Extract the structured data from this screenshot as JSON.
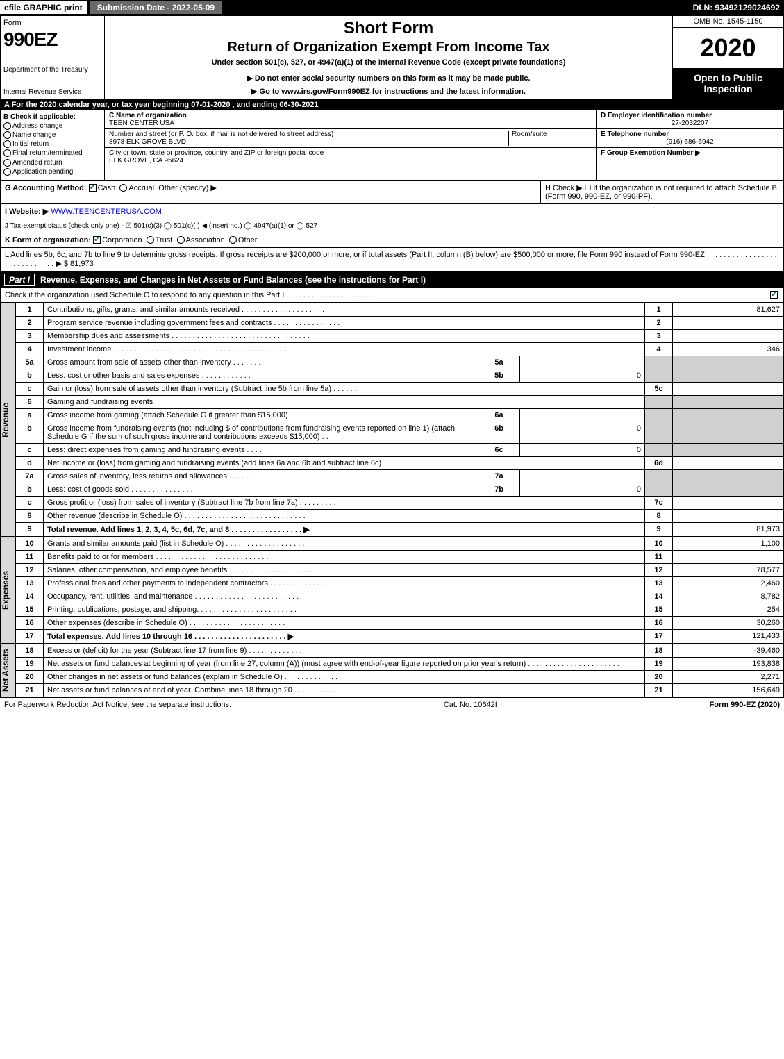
{
  "topbar": {
    "efile": "efile GRAPHIC print",
    "submission": "Submission Date - 2022-05-09",
    "dln": "DLN: 93492129024692"
  },
  "header": {
    "form_word": "Form",
    "form_num": "990EZ",
    "dept": "Department of the Treasury",
    "irs": "Internal Revenue Service",
    "short": "Short Form",
    "title": "Return of Organization Exempt From Income Tax",
    "subtitle": "Under section 501(c), 527, or 4947(a)(1) of the Internal Revenue Code (except private foundations)",
    "note1": "▶ Do not enter social security numbers on this form as it may be made public.",
    "note2": "▶ Go to www.irs.gov/Form990EZ for instructions and the latest information.",
    "omb": "OMB No. 1545-1150",
    "year": "2020",
    "inspect": "Open to Public Inspection"
  },
  "row_a": {
    "prefix": "A For the 2020 calendar year, or tax year beginning ",
    "begin": "07-01-2020",
    "mid": " , and ending ",
    "end": "06-30-2021"
  },
  "col_b": {
    "label": "B Check if applicable:",
    "items": [
      "Address change",
      "Name change",
      "Initial return",
      "Final return/terminated",
      "Amended return",
      "Application pending"
    ]
  },
  "col_c": {
    "name_label": "C Name of organization",
    "name": "TEEN CENTER USA",
    "addr_label": "Number and street (or P. O. box, if mail is not delivered to street address)",
    "room_label": "Room/suite",
    "addr": "8978 ELK GROVE BLVD",
    "city_label": "City or town, state or province, country, and ZIP or foreign postal code",
    "city": "ELK GROVE, CA  95624"
  },
  "col_d": {
    "ein_label": "D Employer identification number",
    "ein": "27-2032207",
    "tel_label": "E Telephone number",
    "tel": "(916) 686-6942",
    "grp_label": "F Group Exemption Number  ▶",
    "grp": ""
  },
  "g": {
    "label": "G Accounting Method:",
    "cash": "Cash",
    "accrual": "Accrual",
    "other": "Other (specify) ▶"
  },
  "h": {
    "text": "H Check ▶ ☐ if the organization is not required to attach Schedule B (Form 990, 990-EZ, or 990-PF)."
  },
  "i": {
    "label": "I Website: ▶",
    "value": "WWW.TEENCENTERUSA.COM"
  },
  "j": {
    "text": "J Tax-exempt status (check only one) - ☑ 501(c)(3)  ◯ 501(c)(  ) ◀ (insert no.)  ◯ 4947(a)(1) or  ◯ 527"
  },
  "k": {
    "label": "K Form of organization:",
    "corp": "Corporation",
    "trust": "Trust",
    "assoc": "Association",
    "other": "Other"
  },
  "l": {
    "text": "L Add lines 5b, 6c, and 7b to line 9 to determine gross receipts. If gross receipts are $200,000 or more, or if total assets (Part II, column (B) below) are $500,000 or more, file Form 990 instead of Form 990-EZ . . . . . . . . . . . . . . . . . . . . . . . . . . . . . ▶ $ 81,973"
  },
  "part1": {
    "num": "Part I",
    "title": "Revenue, Expenses, and Changes in Net Assets or Fund Balances (see the instructions for Part I)",
    "check": "Check if the organization used Schedule O to respond to any question in this Part I . . . . . . . . . . . . . . . . . . . . ."
  },
  "vtabs": {
    "rev": "Revenue",
    "exp": "Expenses",
    "net": "Net Assets"
  },
  "lines": {
    "1": {
      "d": "Contributions, gifts, grants, and similar amounts received . . . . . . . . . . . . . . . . . . . .",
      "n": "1",
      "v": "81,627"
    },
    "2": {
      "d": "Program service revenue including government fees and contracts . . . . . . . . . . . . . . . .",
      "n": "2",
      "v": ""
    },
    "3": {
      "d": "Membership dues and assessments . . . . . . . . . . . . . . . . . . . . . . . . . . . . . . . . .",
      "n": "3",
      "v": ""
    },
    "4": {
      "d": "Investment income . . . . . . . . . . . . . . . . . . . . . . . . . . . . . . . . . . . . . . . . .",
      "n": "4",
      "v": "346"
    },
    "5a": {
      "d": "Gross amount from sale of assets other than inventory . . . . . . .",
      "s": "5a",
      "sv": ""
    },
    "5b": {
      "d": "Less: cost or other basis and sales expenses . . . . . . . . . . . .",
      "s": "5b",
      "sv": "0"
    },
    "5c": {
      "d": "Gain or (loss) from sale of assets other than inventory (Subtract line 5b from line 5a) . . . . . .",
      "n": "5c",
      "v": ""
    },
    "6": {
      "d": "Gaming and fundraising events"
    },
    "6a": {
      "d": "Gross income from gaming (attach Schedule G if greater than $15,000)",
      "s": "6a",
      "sv": ""
    },
    "6b": {
      "d": "Gross income from fundraising events (not including $                 of contributions from fundraising events reported on line 1) (attach Schedule G if the sum of such gross income and contributions exceeds $15,000)   . .",
      "s": "6b",
      "sv": "0"
    },
    "6c": {
      "d": "Less: direct expenses from gaming and fundraising events . . . . .",
      "s": "6c",
      "sv": "0"
    },
    "6d": {
      "d": "Net income or (loss) from gaming and fundraising events (add lines 6a and 6b and subtract line 6c)",
      "n": "6d",
      "v": ""
    },
    "7a": {
      "d": "Gross sales of inventory, less returns and allowances . . . . . .",
      "s": "7a",
      "sv": ""
    },
    "7b": {
      "d": "Less: cost of goods sold     . . . . . . . . . . . . . . .",
      "s": "7b",
      "sv": "0"
    },
    "7c": {
      "d": "Gross profit or (loss) from sales of inventory (Subtract line 7b from line 7a) . . . . . . . . .",
      "n": "7c",
      "v": ""
    },
    "8": {
      "d": "Other revenue (describe in Schedule O) . . . . . . . . . . . . . . . . . . . . . . . . . . . . .",
      "n": "8",
      "v": ""
    },
    "9": {
      "d": "Total revenue. Add lines 1, 2, 3, 4, 5c, 6d, 7c, and 8  . . . . . . . . . . . . . . . . .  ▶",
      "n": "9",
      "v": "81,973",
      "bold": true
    },
    "10": {
      "d": "Grants and similar amounts paid (list in Schedule O) . . . . . . . . . . . . . . . . . . .",
      "n": "10",
      "v": "1,100"
    },
    "11": {
      "d": "Benefits paid to or for members    . . . . . . . . . . . . . . . . . . . . . . . . . . .",
      "n": "11",
      "v": ""
    },
    "12": {
      "d": "Salaries, other compensation, and employee benefits . . . . . . . . . . . . . . . . . . . .",
      "n": "12",
      "v": "78,577"
    },
    "13": {
      "d": "Professional fees and other payments to independent contractors . . . . . . . . . . . . . .",
      "n": "13",
      "v": "2,460"
    },
    "14": {
      "d": "Occupancy, rent, utilities, and maintenance . . . . . . . . . . . . . . . . . . . . . . . . .",
      "n": "14",
      "v": "8,782"
    },
    "15": {
      "d": "Printing, publications, postage, and shipping. . . . . . . . . . . . . . . . . . . . . . . .",
      "n": "15",
      "v": "254"
    },
    "16": {
      "d": "Other expenses (describe in Schedule O)    . . . . . . . . . . . . . . . . . . . . . . .",
      "n": "16",
      "v": "30,260"
    },
    "17": {
      "d": "Total expenses. Add lines 10 through 16     . . . . . . . . . . . . . . . . . . . . . .  ▶",
      "n": "17",
      "v": "121,433",
      "bold": true
    },
    "18": {
      "d": "Excess or (deficit) for the year (Subtract line 17 from line 9)      . . . . . . . . . . . . .",
      "n": "18",
      "v": "-39,460"
    },
    "19": {
      "d": "Net assets or fund balances at beginning of year (from line 27, column (A)) (must agree with end-of-year figure reported on prior year's return) . . . . . . . . . . . . . . . . . . . . . .",
      "n": "19",
      "v": "193,838"
    },
    "20": {
      "d": "Other changes in net assets or fund balances (explain in Schedule O) . . . . . . . . . . . . .",
      "n": "20",
      "v": "2,271"
    },
    "21": {
      "d": "Net assets or fund balances at end of year. Combine lines 18 through 20 . . . . . . . . . .",
      "n": "21",
      "v": "156,649"
    }
  },
  "footer": {
    "left": "For Paperwork Reduction Act Notice, see the separate instructions.",
    "mid": "Cat. No. 10642I",
    "right": "Form 990-EZ (2020)"
  },
  "colors": {
    "black": "#000000",
    "white": "#ffffff",
    "grey": "#d0d0d0",
    "darkgrey": "#6a6a6a",
    "green": "#0a7c3a",
    "link": "#0000ee"
  }
}
